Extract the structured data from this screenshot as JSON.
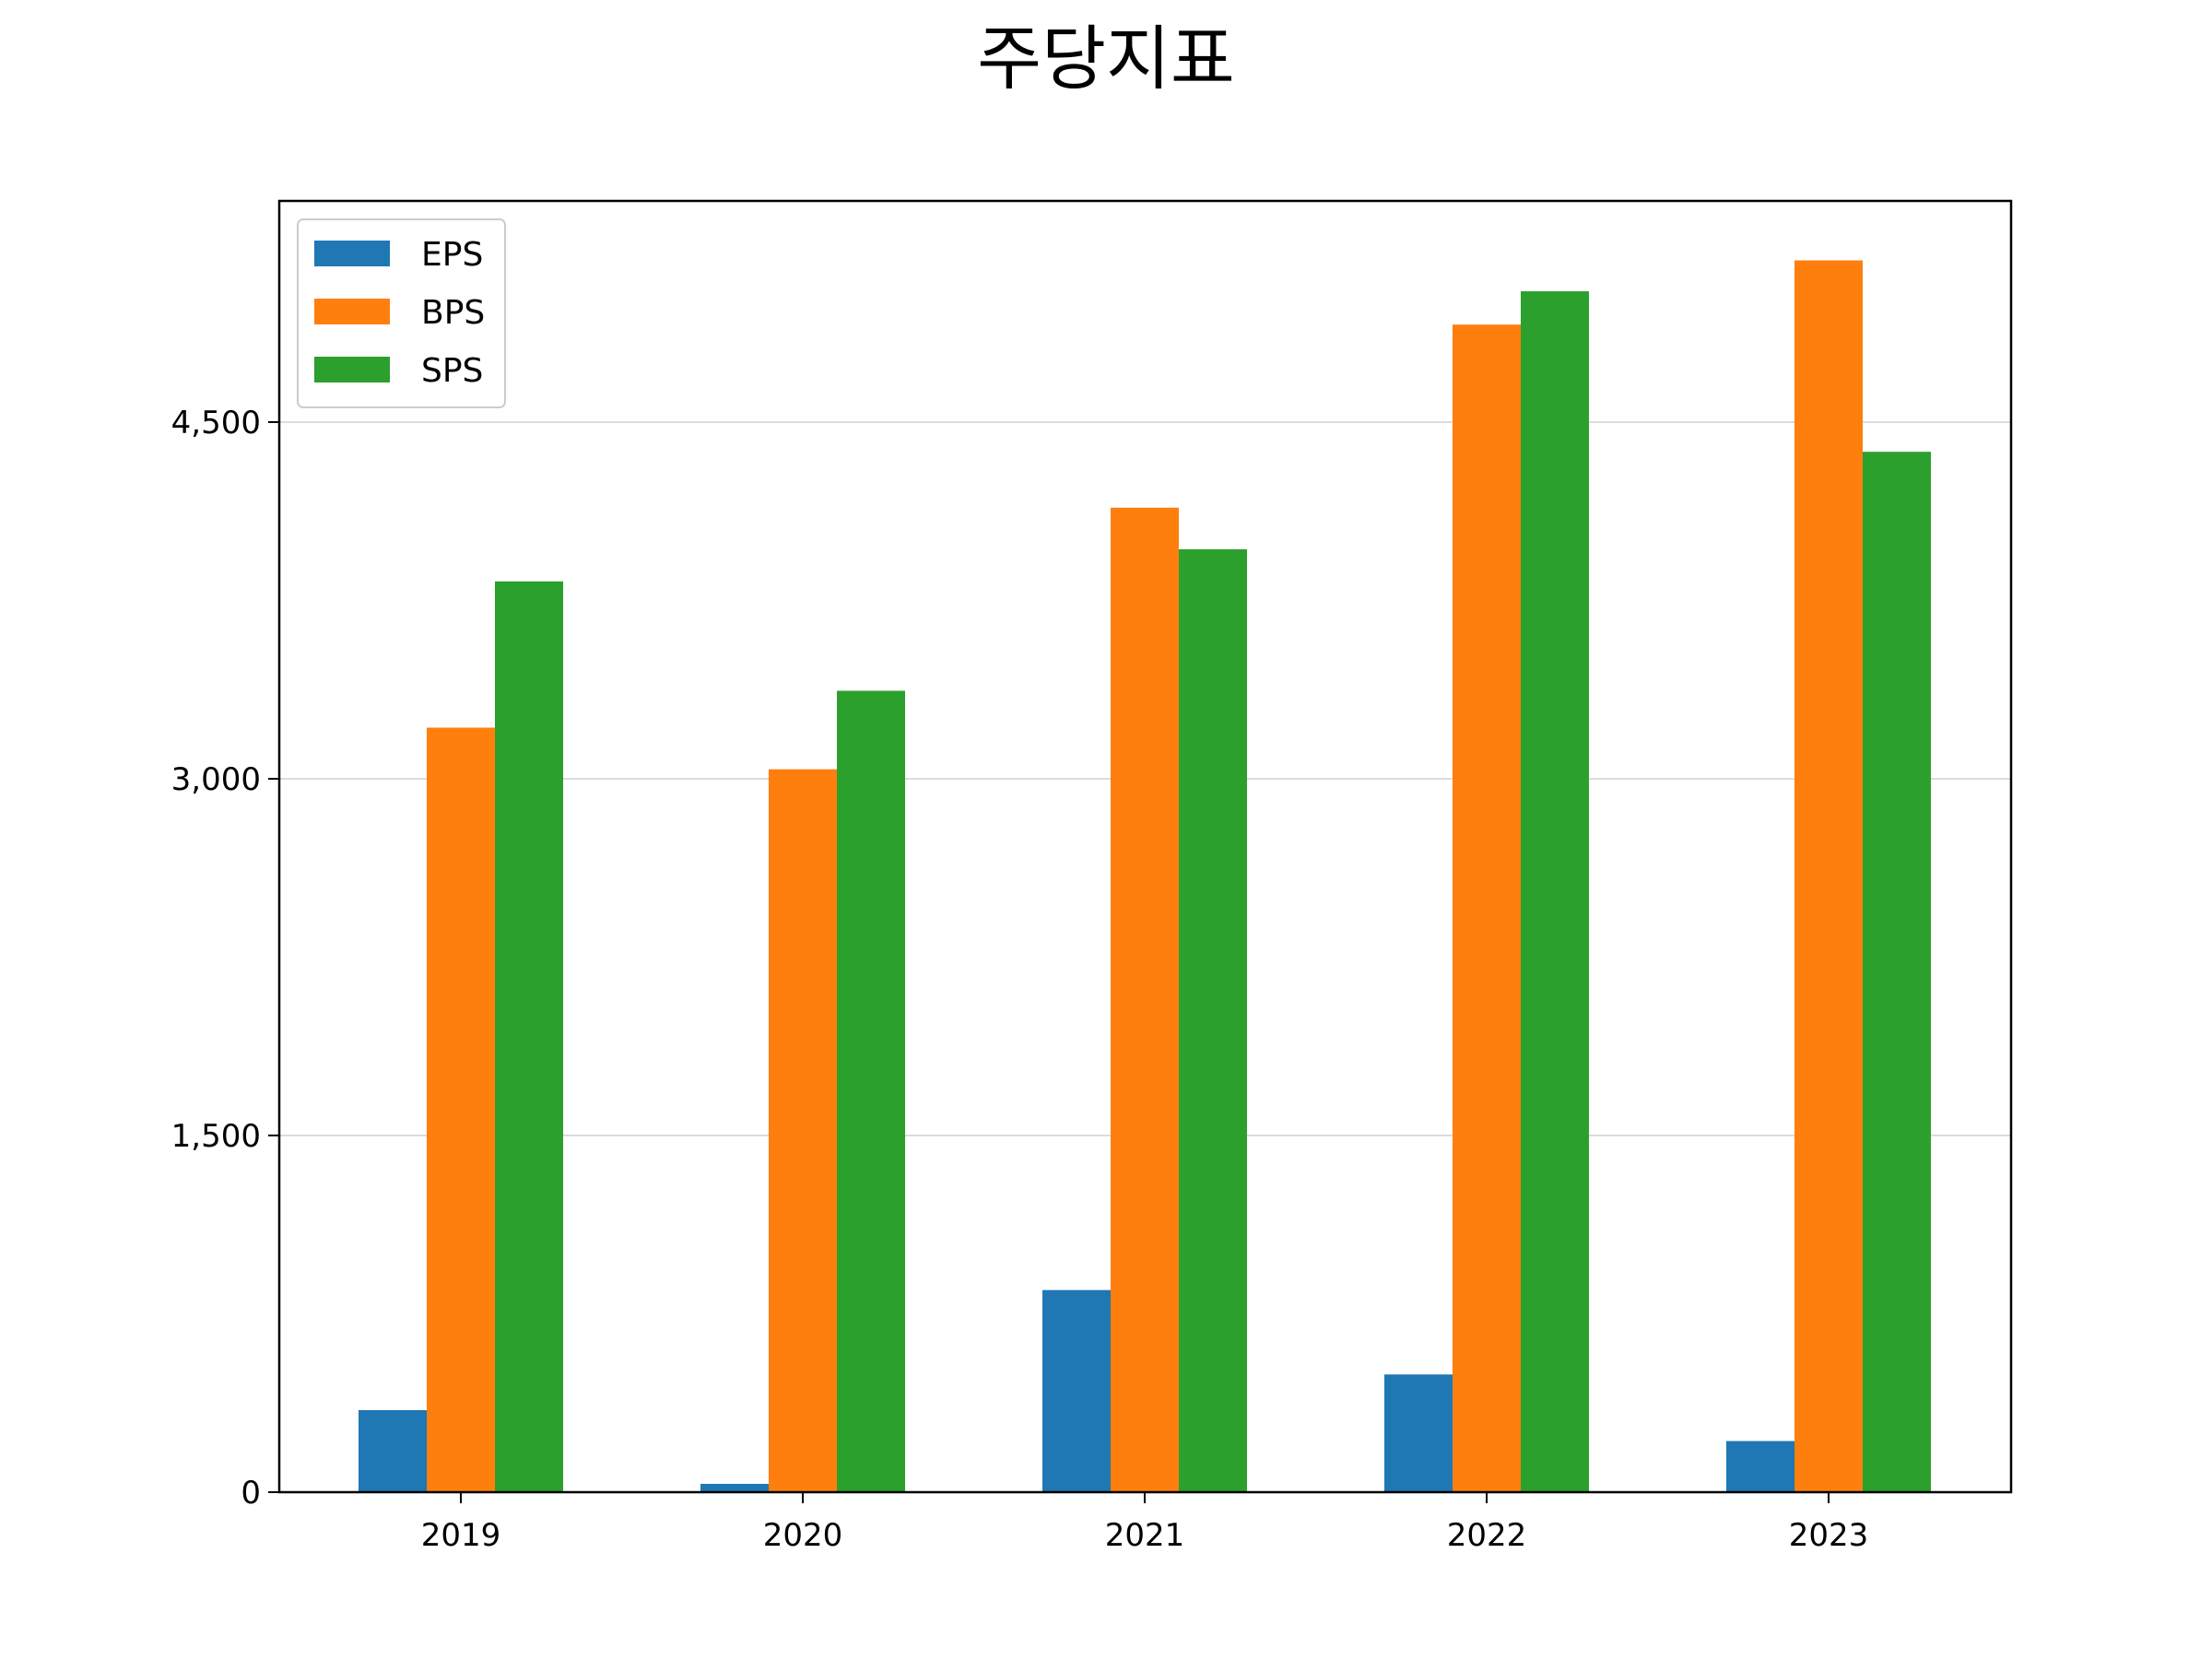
{
  "chart_data": {
    "type": "bar",
    "title": "주당지표",
    "xlabel": "",
    "ylabel": "",
    "categories": [
      "2019",
      "2020",
      "2021",
      "2022",
      "2023"
    ],
    "series": [
      {
        "name": "EPS",
        "color": "#1f77b4",
        "values": [
          345,
          35,
          850,
          495,
          215
        ]
      },
      {
        "name": "BPS",
        "color": "#ff7f0e",
        "values": [
          3215,
          3040,
          4140,
          4910,
          5180
        ]
      },
      {
        "name": "SPS",
        "color": "#2ca02c",
        "values": [
          3830,
          3370,
          3965,
          5050,
          4375
        ]
      }
    ],
    "yticks": [
      0,
      1500,
      3000,
      4500
    ],
    "ytick_labels": [
      "0",
      "1,500",
      "3,000",
      "4,500"
    ],
    "ylim": [
      0,
      5430
    ],
    "grid": "horizontal",
    "legend_position": "top-left"
  }
}
